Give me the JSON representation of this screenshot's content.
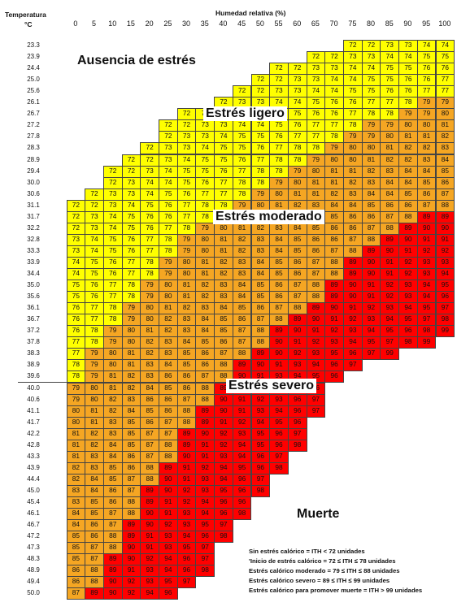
{
  "header": {
    "temp_line1": "Temperatura",
    "temp_line2": "°C",
    "humidity_title": "Humedad relativa (%)"
  },
  "colors": {
    "yellow": "#FFFF00",
    "orange": "#F5A623",
    "red": "#FF0000"
  },
  "zones": {
    "ausencia": "Ausencia de estrés",
    "ligero": "Estrés ligero",
    "moderado": "Estrés moderado",
    "severo": "Estrés severo",
    "muerte": "Muerte"
  },
  "legend": [
    "Sin estrés calórico = ITH < 72 unidades",
    "'Inicio de estrés calórico = 72 ≤ ITH ≤ 78 unidades",
    "Estrés calórico moderado = 79 ≤ ITH ≤ 88 unidades",
    "Estrés calórico severo = 89 ≤ ITH ≤ 99 unidades",
    "Estrés calórico para promover muerte  = ITH > 99 unidades"
  ],
  "chart_data": {
    "type": "table",
    "x_label": "Humedad relativa (%)",
    "y_label": "Temperatura °C",
    "humidity": [
      0,
      5,
      10,
      15,
      20,
      25,
      30,
      35,
      40,
      45,
      50,
      55,
      60,
      65,
      70,
      75,
      80,
      85,
      90,
      95,
      100
    ],
    "temperatures": [
      23.3,
      23.9,
      24.4,
      25.0,
      25.6,
      26.1,
      26.7,
      27.2,
      27.8,
      28.3,
      28.9,
      29.4,
      30.0,
      30.6,
      31.1,
      31.7,
      32.2,
      32.8,
      33.3,
      33.9,
      34.4,
      35.0,
      35.6,
      36.1,
      36.7,
      37.2,
      37.8,
      38.3,
      38.9,
      39.6,
      40.0,
      40.6,
      41.1,
      41.7,
      42.2,
      42.8,
      43.3,
      43.9,
      44.4,
      45.0,
      45.4,
      46.1,
      46.7,
      47.2,
      47.3,
      48.3,
      48.9,
      49.4,
      50.0
    ],
    "rows": [
      {
        "start": 15,
        "values": [
          72,
          72,
          73,
          73,
          74,
          74
        ]
      },
      {
        "start": 13,
        "values": [
          72,
          72,
          73,
          73,
          74,
          74,
          75,
          75
        ]
      },
      {
        "start": 11,
        "values": [
          72,
          72,
          73,
          73,
          74,
          74,
          75,
          75,
          76,
          76
        ]
      },
      {
        "start": 10,
        "values": [
          72,
          72,
          73,
          73,
          74,
          74,
          75,
          75,
          76,
          76,
          77
        ]
      },
      {
        "start": 9,
        "values": [
          72,
          72,
          73,
          73,
          74,
          74,
          75,
          75,
          76,
          76,
          77,
          77
        ]
      },
      {
        "start": 8,
        "values": [
          72,
          73,
          73,
          74,
          74,
          75,
          76,
          76,
          77,
          77,
          78,
          79,
          79
        ]
      },
      {
        "start": 6,
        "values": [
          72,
          72,
          73,
          73,
          74,
          74,
          75,
          76,
          76,
          77,
          78,
          78,
          79,
          79,
          80
        ]
      },
      {
        "start": 5,
        "values": [
          72,
          72,
          73,
          73,
          74,
          74,
          75,
          76,
          77,
          77,
          78,
          79,
          79,
          80,
          80,
          81
        ]
      },
      {
        "start": 5,
        "values": [
          72,
          73,
          73,
          74,
          75,
          75,
          76,
          77,
          77,
          78,
          79,
          79,
          80,
          81,
          81,
          82
        ]
      },
      {
        "start": 4,
        "values": [
          72,
          73,
          73,
          74,
          75,
          75,
          76,
          77,
          78,
          78,
          79,
          80,
          80,
          81,
          82,
          82,
          83
        ]
      },
      {
        "start": 3,
        "values": [
          72,
          72,
          73,
          74,
          75,
          75,
          76,
          77,
          78,
          78,
          79,
          80,
          80,
          81,
          82,
          82,
          83,
          84
        ]
      },
      {
        "start": 2,
        "values": [
          72,
          72,
          73,
          74,
          75,
          75,
          76,
          77,
          78,
          78,
          79,
          80,
          81,
          81,
          82,
          83,
          84,
          84,
          85
        ]
      },
      {
        "start": 2,
        "values": [
          72,
          73,
          74,
          74,
          75,
          76,
          77,
          78,
          78,
          79,
          80,
          81,
          81,
          82,
          83,
          84,
          84,
          85,
          86
        ]
      },
      {
        "start": 1,
        "values": [
          72,
          73,
          73,
          74,
          75,
          76,
          77,
          77,
          78,
          79,
          80,
          81,
          81,
          82,
          83,
          84,
          84,
          85,
          86,
          87
        ]
      },
      {
        "start": 0,
        "values": [
          72,
          72,
          73,
          74,
          75,
          76,
          77,
          78,
          78,
          79,
          80,
          81,
          82,
          83,
          84,
          84,
          85,
          86,
          86,
          87,
          88
        ]
      },
      {
        "start": 0,
        "values": [
          72,
          73,
          74,
          75,
          76,
          76,
          77,
          78,
          79,
          80,
          81,
          82,
          83,
          84,
          85,
          86,
          86,
          87,
          88,
          89,
          89
        ]
      },
      {
        "start": 0,
        "values": [
          72,
          73,
          74,
          75,
          76,
          77,
          78,
          79,
          80,
          81,
          82,
          83,
          84,
          85,
          86,
          86,
          87,
          88,
          89,
          90,
          90
        ]
      },
      {
        "start": 0,
        "values": [
          73,
          74,
          75,
          76,
          77,
          78,
          79,
          80,
          81,
          82,
          83,
          84,
          85,
          86,
          86,
          87,
          88,
          89,
          90,
          91,
          91
        ]
      },
      {
        "start": 0,
        "values": [
          73,
          74,
          75,
          76,
          77,
          78,
          79,
          80,
          81,
          82,
          83,
          84,
          85,
          86,
          87,
          88,
          89,
          90,
          91,
          92,
          92
        ]
      },
      {
        "start": 0,
        "values": [
          74,
          75,
          76,
          77,
          78,
          79,
          80,
          81,
          82,
          83,
          84,
          85,
          86,
          87,
          88,
          89,
          90,
          91,
          92,
          93,
          93
        ]
      },
      {
        "start": 0,
        "values": [
          74,
          75,
          76,
          77,
          78,
          79,
          80,
          81,
          82,
          83,
          84,
          85,
          86,
          87,
          88,
          89,
          90,
          91,
          92,
          93,
          94
        ]
      },
      {
        "start": 0,
        "values": [
          75,
          76,
          77,
          78,
          79,
          80,
          81,
          82,
          83,
          84,
          85,
          86,
          87,
          88,
          89,
          90,
          91,
          92,
          93,
          94,
          95
        ]
      },
      {
        "start": 0,
        "values": [
          75,
          76,
          77,
          78,
          79,
          80,
          81,
          82,
          83,
          84,
          85,
          86,
          87,
          88,
          89,
          90,
          91,
          92,
          93,
          94,
          96
        ]
      },
      {
        "start": 0,
        "values": [
          76,
          77,
          78,
          79,
          80,
          81,
          82,
          83,
          84,
          85,
          86,
          87,
          88,
          89,
          90,
          91,
          92,
          93,
          94,
          95,
          97
        ]
      },
      {
        "start": 0,
        "values": [
          76,
          77,
          78,
          79,
          80,
          82,
          83,
          84,
          85,
          86,
          87,
          88,
          89,
          90,
          91,
          92,
          93,
          94,
          95,
          97,
          98
        ]
      },
      {
        "start": 0,
        "values": [
          76,
          78,
          79,
          80,
          81,
          82,
          83,
          84,
          85,
          87,
          88,
          89,
          90,
          91,
          92,
          93,
          94,
          95,
          96,
          98,
          99
        ]
      },
      {
        "start": 0,
        "values": [
          77,
          78,
          79,
          80,
          82,
          83,
          84,
          85,
          86,
          87,
          88,
          90,
          91,
          92,
          93,
          94,
          95,
          97,
          98,
          99
        ]
      },
      {
        "start": 0,
        "values": [
          77,
          79,
          80,
          81,
          82,
          83,
          85,
          86,
          87,
          88,
          89,
          90,
          92,
          93,
          95,
          96,
          97,
          99
        ]
      },
      {
        "start": 0,
        "values": [
          78,
          79,
          80,
          81,
          83,
          84,
          85,
          86,
          88,
          89,
          90,
          91,
          93,
          94,
          96,
          97
        ]
      },
      {
        "start": 0,
        "values": [
          78,
          79,
          81,
          82,
          83,
          86,
          86,
          87,
          88,
          90,
          91,
          93,
          94,
          95,
          96
        ]
      },
      {
        "start": 0,
        "values": [
          79,
          80,
          81,
          82,
          84,
          85,
          86,
          88,
          89,
          90,
          92,
          93,
          95,
          96
        ]
      },
      {
        "start": 0,
        "values": [
          79,
          80,
          82,
          83,
          86,
          86,
          87,
          88,
          90,
          91,
          92,
          93,
          96,
          97
        ]
      },
      {
        "start": 0,
        "values": [
          80,
          81,
          82,
          84,
          85,
          86,
          88,
          89,
          90,
          91,
          93,
          94,
          96,
          97
        ]
      },
      {
        "start": 0,
        "values": [
          80,
          81,
          83,
          85,
          86,
          87,
          88,
          89,
          91,
          92,
          94,
          95,
          96
        ]
      },
      {
        "start": 0,
        "values": [
          81,
          82,
          83,
          85,
          87,
          87,
          89,
          90,
          92,
          93,
          95,
          96,
          97
        ]
      },
      {
        "start": 0,
        "values": [
          81,
          82,
          84,
          85,
          87,
          88,
          89,
          91,
          92,
          94,
          95,
          96,
          98
        ]
      },
      {
        "start": 0,
        "values": [
          81,
          83,
          84,
          86,
          87,
          88,
          90,
          91,
          93,
          94,
          96,
          97
        ]
      },
      {
        "start": 0,
        "values": [
          82,
          83,
          85,
          86,
          88,
          89,
          91,
          92,
          94,
          95,
          96,
          98
        ]
      },
      {
        "start": 0,
        "values": [
          82,
          84,
          85,
          87,
          88,
          90,
          91,
          93,
          94,
          96,
          97
        ]
      },
      {
        "start": 0,
        "values": [
          83,
          84,
          86,
          87,
          89,
          90,
          92,
          93,
          95,
          96,
          98
        ]
      },
      {
        "start": 0,
        "values": [
          83,
          85,
          86,
          88,
          89,
          91,
          92,
          94,
          96,
          96
        ]
      },
      {
        "start": 0,
        "values": [
          84,
          85,
          87,
          88,
          90,
          91,
          93,
          94,
          96,
          98
        ]
      },
      {
        "start": 0,
        "values": [
          84,
          86,
          87,
          89,
          90,
          92,
          93,
          95,
          97
        ]
      },
      {
        "start": 0,
        "values": [
          85,
          86,
          88,
          89,
          91,
          93,
          94,
          96,
          98
        ]
      },
      {
        "start": 0,
        "values": [
          85,
          87,
          88,
          90,
          91,
          93,
          95,
          97
        ]
      },
      {
        "start": 0,
        "values": [
          85,
          87,
          89,
          90,
          92,
          94,
          96,
          97
        ]
      },
      {
        "start": 0,
        "values": [
          86,
          88,
          89,
          91,
          93,
          94,
          96,
          98
        ]
      },
      {
        "start": 0,
        "values": [
          86,
          88,
          90,
          92,
          93,
          95,
          97
        ]
      },
      {
        "start": 0,
        "values": [
          87,
          89,
          90,
          92,
          94,
          96
        ]
      }
    ]
  }
}
